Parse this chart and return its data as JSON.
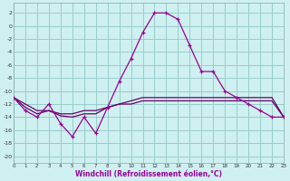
{
  "xlabel": "Windchill (Refroidissement éolien,°C)",
  "background_color": "#cff0f0",
  "grid_color": "#99cccc",
  "line_color": "#990099",
  "line_color2": "#660066",
  "hours": [
    0,
    1,
    2,
    3,
    4,
    5,
    6,
    7,
    8,
    9,
    10,
    11,
    12,
    13,
    14,
    15,
    16,
    17,
    18,
    19,
    20,
    21,
    22,
    23
  ],
  "windchill": [
    -11,
    -13,
    -14,
    -12,
    -15,
    -17,
    -14,
    -16.5,
    -12.5,
    -8.5,
    -5,
    -1,
    2,
    2,
    1,
    -3,
    -7,
    -7,
    -10,
    -11,
    -12,
    -13,
    -14,
    -14
  ],
  "temp": [
    -11,
    -12,
    -13,
    -13,
    -13.5,
    -13.5,
    -13,
    -13,
    -12.5,
    -12,
    -11.5,
    -11,
    -11,
    -11,
    -11,
    -11,
    -11,
    -11,
    -11,
    -11,
    -11,
    -11,
    -11,
    -14
  ],
  "feels_like": [
    -11,
    -12.5,
    -13.5,
    -13,
    -13.8,
    -14,
    -13.5,
    -13.5,
    -12.5,
    -12,
    -12,
    -11.5,
    -11.5,
    -11.5,
    -11.5,
    -11.5,
    -11.5,
    -11.5,
    -11.5,
    -11.5,
    -11.5,
    -11.5,
    -11.5,
    -14
  ],
  "ylim": [
    -21,
    3.5
  ],
  "yticks": [
    2,
    0,
    -2,
    -4,
    -6,
    -8,
    -10,
    -12,
    -14,
    -16,
    -18,
    -20
  ]
}
